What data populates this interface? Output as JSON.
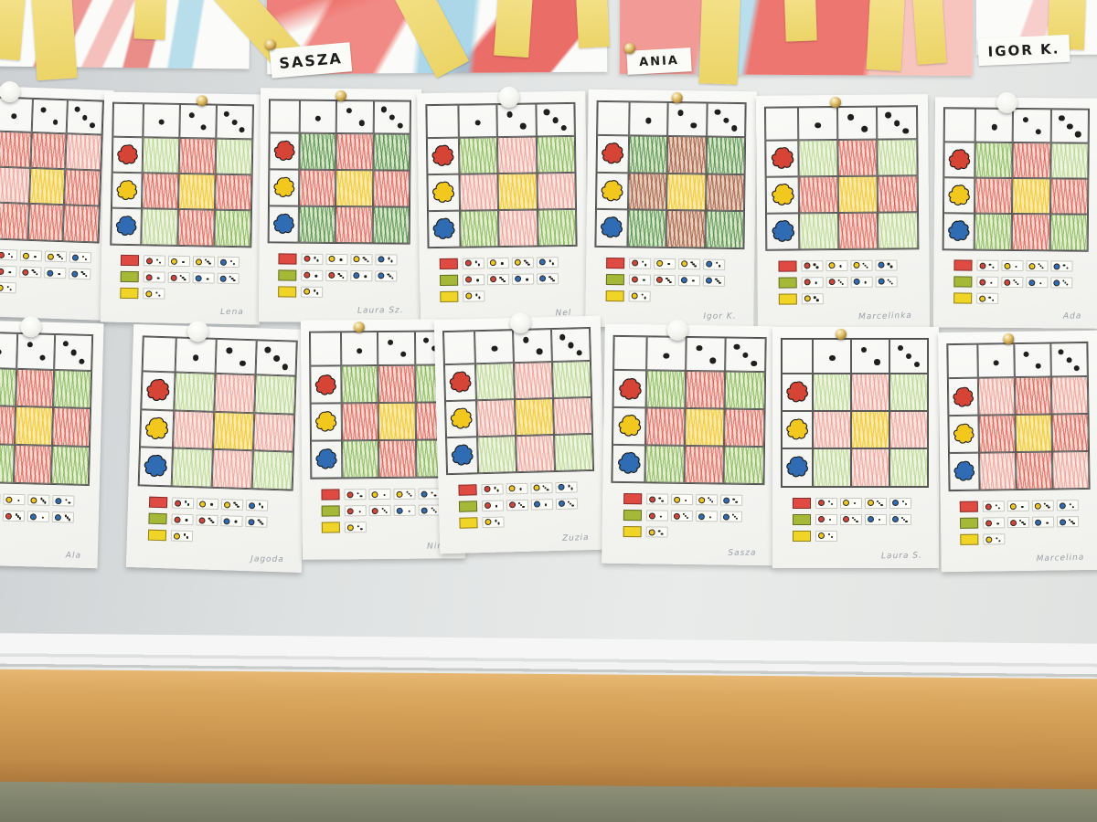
{
  "colors": {
    "board": "#dfe2e2",
    "frame": "#f2f3f2",
    "wall_orange": "#cf9a53",
    "floor": "#7a7d68",
    "paper": "#f7f7f5",
    "strip_yellow": "#f0d96f",
    "crayon_red": "#de463a",
    "crayon_green": "#6cae36",
    "crayon_yellow": "#f3cb20",
    "blob_red": "#d64436",
    "blob_yellow": "#f2c81e",
    "blob_blue": "#2f6cb3",
    "pin_brass": "#dcb75e",
    "magnet_white": "#f3f3ee"
  },
  "name_labels": [
    {
      "text": "SASZA"
    },
    {
      "text": "ANIA"
    },
    {
      "text": "IGOR K."
    }
  ],
  "legend": [
    {
      "swatch": "#df4a43",
      "chips": [
        {
          "blob": "red",
          "dice": 2
        },
        {
          "blob": "yellow",
          "dice": 1
        },
        {
          "blob": "yellow",
          "dice": 3
        },
        {
          "blob": "blue",
          "dice": 2
        }
      ]
    },
    {
      "swatch": "#a6b838",
      "chips": [
        {
          "blob": "red",
          "dice": 1
        },
        {
          "blob": "red",
          "dice": 3
        },
        {
          "blob": "blue",
          "dice": 1
        },
        {
          "blob": "blue",
          "dice": 3
        }
      ]
    },
    {
      "swatch": "#f0d428",
      "chips": [
        {
          "blob": "yellow",
          "dice": 2
        }
      ]
    }
  ],
  "blob_colors": {
    "red": "#d64436",
    "yellow": "#f2c81e",
    "blue": "#2f6cb3"
  },
  "worksheets": [
    {
      "row": "top",
      "signature": "",
      "pin": "white",
      "dice": [
        1,
        2,
        3
      ],
      "pattern": [
        [
          "red",
          "red",
          "red-light"
        ],
        [
          "red-light",
          "yellow",
          "red"
        ],
        [
          "red",
          "red",
          "red"
        ]
      ]
    },
    {
      "row": "top",
      "signature": "Lena",
      "pin": "brass",
      "dice": [
        1,
        2,
        3
      ],
      "pattern": [
        [
          "green-light",
          "red",
          "green-light"
        ],
        [
          "red",
          "yellow",
          "red"
        ],
        [
          "green-light",
          "red",
          "green"
        ]
      ]
    },
    {
      "row": "top",
      "signature": "Laura Sz.",
      "pin": "brass",
      "dice": [
        1,
        2,
        3
      ],
      "pattern": [
        [
          "green-dark",
          "red",
          "green-dark"
        ],
        [
          "red",
          "yellow",
          "red"
        ],
        [
          "green-dark",
          "red",
          "green-dark"
        ]
      ]
    },
    {
      "row": "top",
      "signature": "Nel",
      "pin": "white",
      "dice": [
        1,
        2,
        3
      ],
      "pattern": [
        [
          "green",
          "red-light",
          "green"
        ],
        [
          "red-light",
          "yellow",
          "red-light"
        ],
        [
          "green",
          "red-light",
          "green"
        ]
      ]
    },
    {
      "row": "top",
      "signature": "Igor K.",
      "pin": "brass",
      "dice": [
        1,
        2,
        3
      ],
      "pattern": [
        [
          "green-dark",
          "red-dark",
          "green-dark"
        ],
        [
          "red-dark",
          "yellow",
          "red-dark"
        ],
        [
          "green-dark",
          "red-dark",
          "green-dark"
        ]
      ]
    },
    {
      "row": "top",
      "signature": "Marcelinka",
      "pin": "brass",
      "dice": [
        1,
        2,
        3
      ],
      "pattern": [
        [
          "green-light",
          "red",
          "green-light"
        ],
        [
          "red",
          "yellow",
          "red"
        ],
        [
          "green-light",
          "red",
          "green-light"
        ]
      ]
    },
    {
      "row": "top",
      "signature": "Ada",
      "pin": "white",
      "dice": [
        1,
        2,
        3
      ],
      "pattern": [
        [
          "green",
          "red",
          "green-light"
        ],
        [
          "red",
          "yellow",
          "red"
        ],
        [
          "green",
          "red",
          "green"
        ]
      ]
    },
    {
      "row": "bottom",
      "signature": "Ala",
      "pin": "white",
      "dice": [
        1,
        2,
        3
      ],
      "pattern": [
        [
          "green",
          "red",
          "green"
        ],
        [
          "red",
          "yellow",
          "red"
        ],
        [
          "green",
          "red",
          "green"
        ]
      ]
    },
    {
      "row": "bottom",
      "signature": "Jagoda",
      "pin": "white",
      "dice": [
        1,
        2,
        3
      ],
      "pattern": [
        [
          "green-light",
          "red-light",
          "green-light"
        ],
        [
          "red-light",
          "yellow",
          "red-light"
        ],
        [
          "green-light",
          "red-light",
          "green-light"
        ]
      ]
    },
    {
      "row": "bottom",
      "signature": "Nina",
      "pin": "brass",
      "dice": [
        1,
        2,
        3
      ],
      "pattern": [
        [
          "green",
          "red",
          "green"
        ],
        [
          "red",
          "yellow",
          "red"
        ],
        [
          "green",
          "red",
          "green"
        ]
      ]
    },
    {
      "row": "bottom",
      "signature": "Zuzia",
      "pin": "white",
      "dice": [
        1,
        2,
        3
      ],
      "pattern": [
        [
          "green-light",
          "red-light",
          "green-light"
        ],
        [
          "red-light",
          "yellow",
          "red-light"
        ],
        [
          "green-light",
          "red-light",
          "green-light"
        ]
      ]
    },
    {
      "row": "bottom",
      "signature": "Sasza",
      "pin": "white",
      "dice": [
        1,
        2,
        3
      ],
      "pattern": [
        [
          "green",
          "red",
          "green"
        ],
        [
          "red",
          "yellow",
          "red"
        ],
        [
          "green",
          "red",
          "green"
        ]
      ]
    },
    {
      "row": "bottom",
      "signature": "Laura S.",
      "pin": "brass",
      "dice": [
        1,
        2,
        3
      ],
      "pattern": [
        [
          "green-light",
          "red-light",
          "green-light"
        ],
        [
          "red-light",
          "yellow",
          "red-light"
        ],
        [
          "green-light",
          "red-light",
          "green-light"
        ]
      ]
    },
    {
      "row": "bottom",
      "signature": "Marcelina",
      "pin": "brass",
      "dice": [
        1,
        2,
        3
      ],
      "pattern": [
        [
          "red-light",
          "red",
          "red-light"
        ],
        [
          "red",
          "yellow",
          "red"
        ],
        [
          "red-light",
          "red",
          "red-light"
        ]
      ]
    }
  ]
}
